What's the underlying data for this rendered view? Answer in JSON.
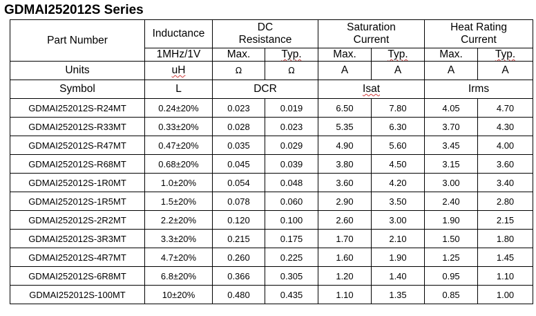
{
  "title": "GDMAI252012S Series",
  "headers": {
    "part_number": "Part Number",
    "inductance": "Inductance",
    "dc_resistance_line1": "DC",
    "dc_resistance_line2": "Resistance",
    "saturation_line1": "Saturation",
    "saturation_line2": "Current",
    "heat_line1": "Heat Rating",
    "heat_line2": "Current",
    "test_condition": "1MHz/1V",
    "max": "Max.",
    "typ": "Typ."
  },
  "units": {
    "label": "Units",
    "inductance": "uH",
    "dcr_max": "Ω",
    "dcr_typ": "Ω",
    "isat_max": "A",
    "isat_typ": "A",
    "irms_max": "A",
    "irms_typ": "A"
  },
  "symbols": {
    "label": "Symbol",
    "inductance": "L",
    "dcr": "DCR",
    "isat": "Isat",
    "irms": "Irms"
  },
  "rows": [
    {
      "part": "GDMAI252012S-R24MT",
      "l": "0.24±20%",
      "dcr_max": "0.023",
      "dcr_typ": "0.019",
      "isat_max": "6.50",
      "isat_typ": "7.80",
      "irms_max": "4.05",
      "irms_typ": "4.70"
    },
    {
      "part": "GDMAI252012S-R33MT",
      "l": "0.33±20%",
      "dcr_max": "0.028",
      "dcr_typ": "0.023",
      "isat_max": "5.35",
      "isat_typ": "6.30",
      "irms_max": "3.70",
      "irms_typ": "4.30"
    },
    {
      "part": "GDMAI252012S-R47MT",
      "l": "0.47±20%",
      "dcr_max": "0.035",
      "dcr_typ": "0.029",
      "isat_max": "4.90",
      "isat_typ": "5.60",
      "irms_max": "3.45",
      "irms_typ": "4.00"
    },
    {
      "part": "GDMAI252012S-R68MT",
      "l": "0.68±20%",
      "dcr_max": "0.045",
      "dcr_typ": "0.039",
      "isat_max": "3.80",
      "isat_typ": "4.50",
      "irms_max": "3.15",
      "irms_typ": "3.60"
    },
    {
      "part": "GDMAI252012S-1R0MT",
      "l": "1.0±20%",
      "dcr_max": "0.054",
      "dcr_typ": "0.048",
      "isat_max": "3.60",
      "isat_typ": "4.20",
      "irms_max": "3.00",
      "irms_typ": "3.40"
    },
    {
      "part": "GDMAI252012S-1R5MT",
      "l": "1.5±20%",
      "dcr_max": "0.078",
      "dcr_typ": "0.060",
      "isat_max": "2.90",
      "isat_typ": "3.50",
      "irms_max": "2.40",
      "irms_typ": "2.80"
    },
    {
      "part": "GDMAI252012S-2R2MT",
      "l": "2.2±20%",
      "dcr_max": "0.120",
      "dcr_typ": "0.100",
      "isat_max": "2.60",
      "isat_typ": "3.00",
      "irms_max": "1.90",
      "irms_typ": "2.15"
    },
    {
      "part": "GDMAI252012S-3R3MT",
      "l": "3.3±20%",
      "dcr_max": "0.215",
      "dcr_typ": "0.175",
      "isat_max": "1.70",
      "isat_typ": "2.10",
      "irms_max": "1.50",
      "irms_typ": "1.80"
    },
    {
      "part": "GDMAI252012S-4R7MT",
      "l": "4.7±20%",
      "dcr_max": "0.260",
      "dcr_typ": "0.225",
      "isat_max": "1.60",
      "isat_typ": "1.90",
      "irms_max": "1.25",
      "irms_typ": "1.45"
    },
    {
      "part": "GDMAI252012S-6R8MT",
      "l": "6.8±20%",
      "dcr_max": "0.366",
      "dcr_typ": "0.305",
      "isat_max": "1.20",
      "isat_typ": "1.40",
      "irms_max": "0.95",
      "irms_typ": "1.10"
    },
    {
      "part": "GDMAI252012S-100MT",
      "l": "10±20%",
      "dcr_max": "0.480",
      "dcr_typ": "0.435",
      "isat_max": "1.10",
      "isat_typ": "1.35",
      "irms_max": "0.85",
      "irms_typ": "1.00"
    }
  ]
}
